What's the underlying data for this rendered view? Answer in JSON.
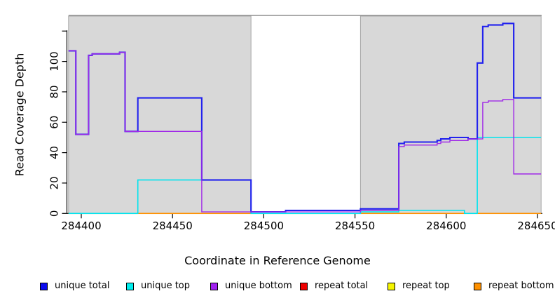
{
  "chart_data": {
    "type": "line",
    "subtype": "step",
    "title": "",
    "xlabel": "Coordinate in Reference Genome",
    "ylabel": "Read Coverage Depth",
    "xlim": [
      284393,
      284652
    ],
    "ylim": [
      0,
      131
    ],
    "grid": false,
    "x_ticks": [
      284400,
      284450,
      284500,
      284550,
      284600,
      284650
    ],
    "x_tick_labels": [
      "284400",
      "284450",
      "284500",
      "284550",
      "284600",
      "284650"
    ],
    "y_ticks": [
      0,
      20,
      40,
      60,
      80,
      100,
      120
    ],
    "y_tick_labels": [
      "0",
      "20",
      "40",
      "60",
      "80",
      "100",
      ""
    ],
    "background_color": "#d8d8d8",
    "background_border_color": "#a8a8a8",
    "top_rule_color": "#8f8f8f",
    "shaded_regions": [
      [
        284393,
        284493
      ],
      [
        284553,
        284652
      ]
    ],
    "gap_region": [
      284493,
      284553
    ],
    "x_end": 284652,
    "series": [
      {
        "name": "repeat total",
        "color": "#e60000",
        "width": 1.4,
        "points": [
          [
            284393,
            0
          ]
        ]
      },
      {
        "name": "repeat top",
        "color": "#f2f200",
        "width": 1.4,
        "points": [
          [
            284393,
            0
          ]
        ]
      },
      {
        "name": "repeat bottom",
        "color": "#ff9100",
        "width": 1.6,
        "points": [
          [
            284393,
            0
          ]
        ]
      },
      {
        "name": "unique top",
        "color": "#00e4ee",
        "width": 1.6,
        "points": [
          [
            284393,
            0
          ],
          [
            284431,
            22
          ],
          [
            284493,
            0
          ],
          [
            284553,
            1
          ],
          [
            284574,
            2
          ],
          [
            284610,
            0
          ],
          [
            284617,
            50
          ]
        ]
      },
      {
        "name": "unique total",
        "color": "#2222ee",
        "width": 2.1,
        "points": [
          [
            284393,
            107
          ],
          [
            284397,
            52
          ],
          [
            284404,
            104
          ],
          [
            284406,
            105
          ],
          [
            284421,
            106
          ],
          [
            284424,
            54
          ],
          [
            284431,
            76
          ],
          [
            284466,
            22
          ],
          [
            284493,
            1
          ],
          [
            284512,
            2
          ],
          [
            284553,
            3
          ],
          [
            284574,
            46
          ],
          [
            284577,
            47
          ],
          [
            284595,
            48
          ],
          [
            284597,
            49
          ],
          [
            284602,
            50
          ],
          [
            284612,
            49
          ],
          [
            284617,
            99
          ],
          [
            284620,
            123
          ],
          [
            284623,
            124
          ],
          [
            284631,
            125
          ],
          [
            284637,
            76
          ]
        ]
      },
      {
        "name": "unique bottom",
        "color": "#a02ae8",
        "width": 1.4,
        "points": [
          [
            284393,
            107
          ],
          [
            284397,
            52
          ],
          [
            284404,
            104
          ],
          [
            284406,
            105
          ],
          [
            284421,
            106
          ],
          [
            284424,
            54
          ],
          [
            284466,
            1
          ],
          [
            284553,
            2
          ],
          [
            284574,
            44
          ],
          [
            284577,
            45
          ],
          [
            284595,
            46
          ],
          [
            284597,
            47
          ],
          [
            284602,
            48
          ],
          [
            284612,
            49
          ],
          [
            284620,
            73
          ],
          [
            284623,
            74
          ],
          [
            284631,
            75
          ],
          [
            284637,
            26
          ]
        ]
      }
    ],
    "legend": [
      {
        "label": "unique total",
        "color": "#0a0aee"
      },
      {
        "label": "unique top",
        "color": "#00eeee"
      },
      {
        "label": "unique bottom",
        "color": "#a020f0"
      },
      {
        "label": "repeat total",
        "color": "#ee0000"
      },
      {
        "label": "repeat top",
        "color": "#f5f500"
      },
      {
        "label": "repeat bottom",
        "color": "#ff9100"
      }
    ],
    "legend_position": "bottom-horizontal"
  }
}
